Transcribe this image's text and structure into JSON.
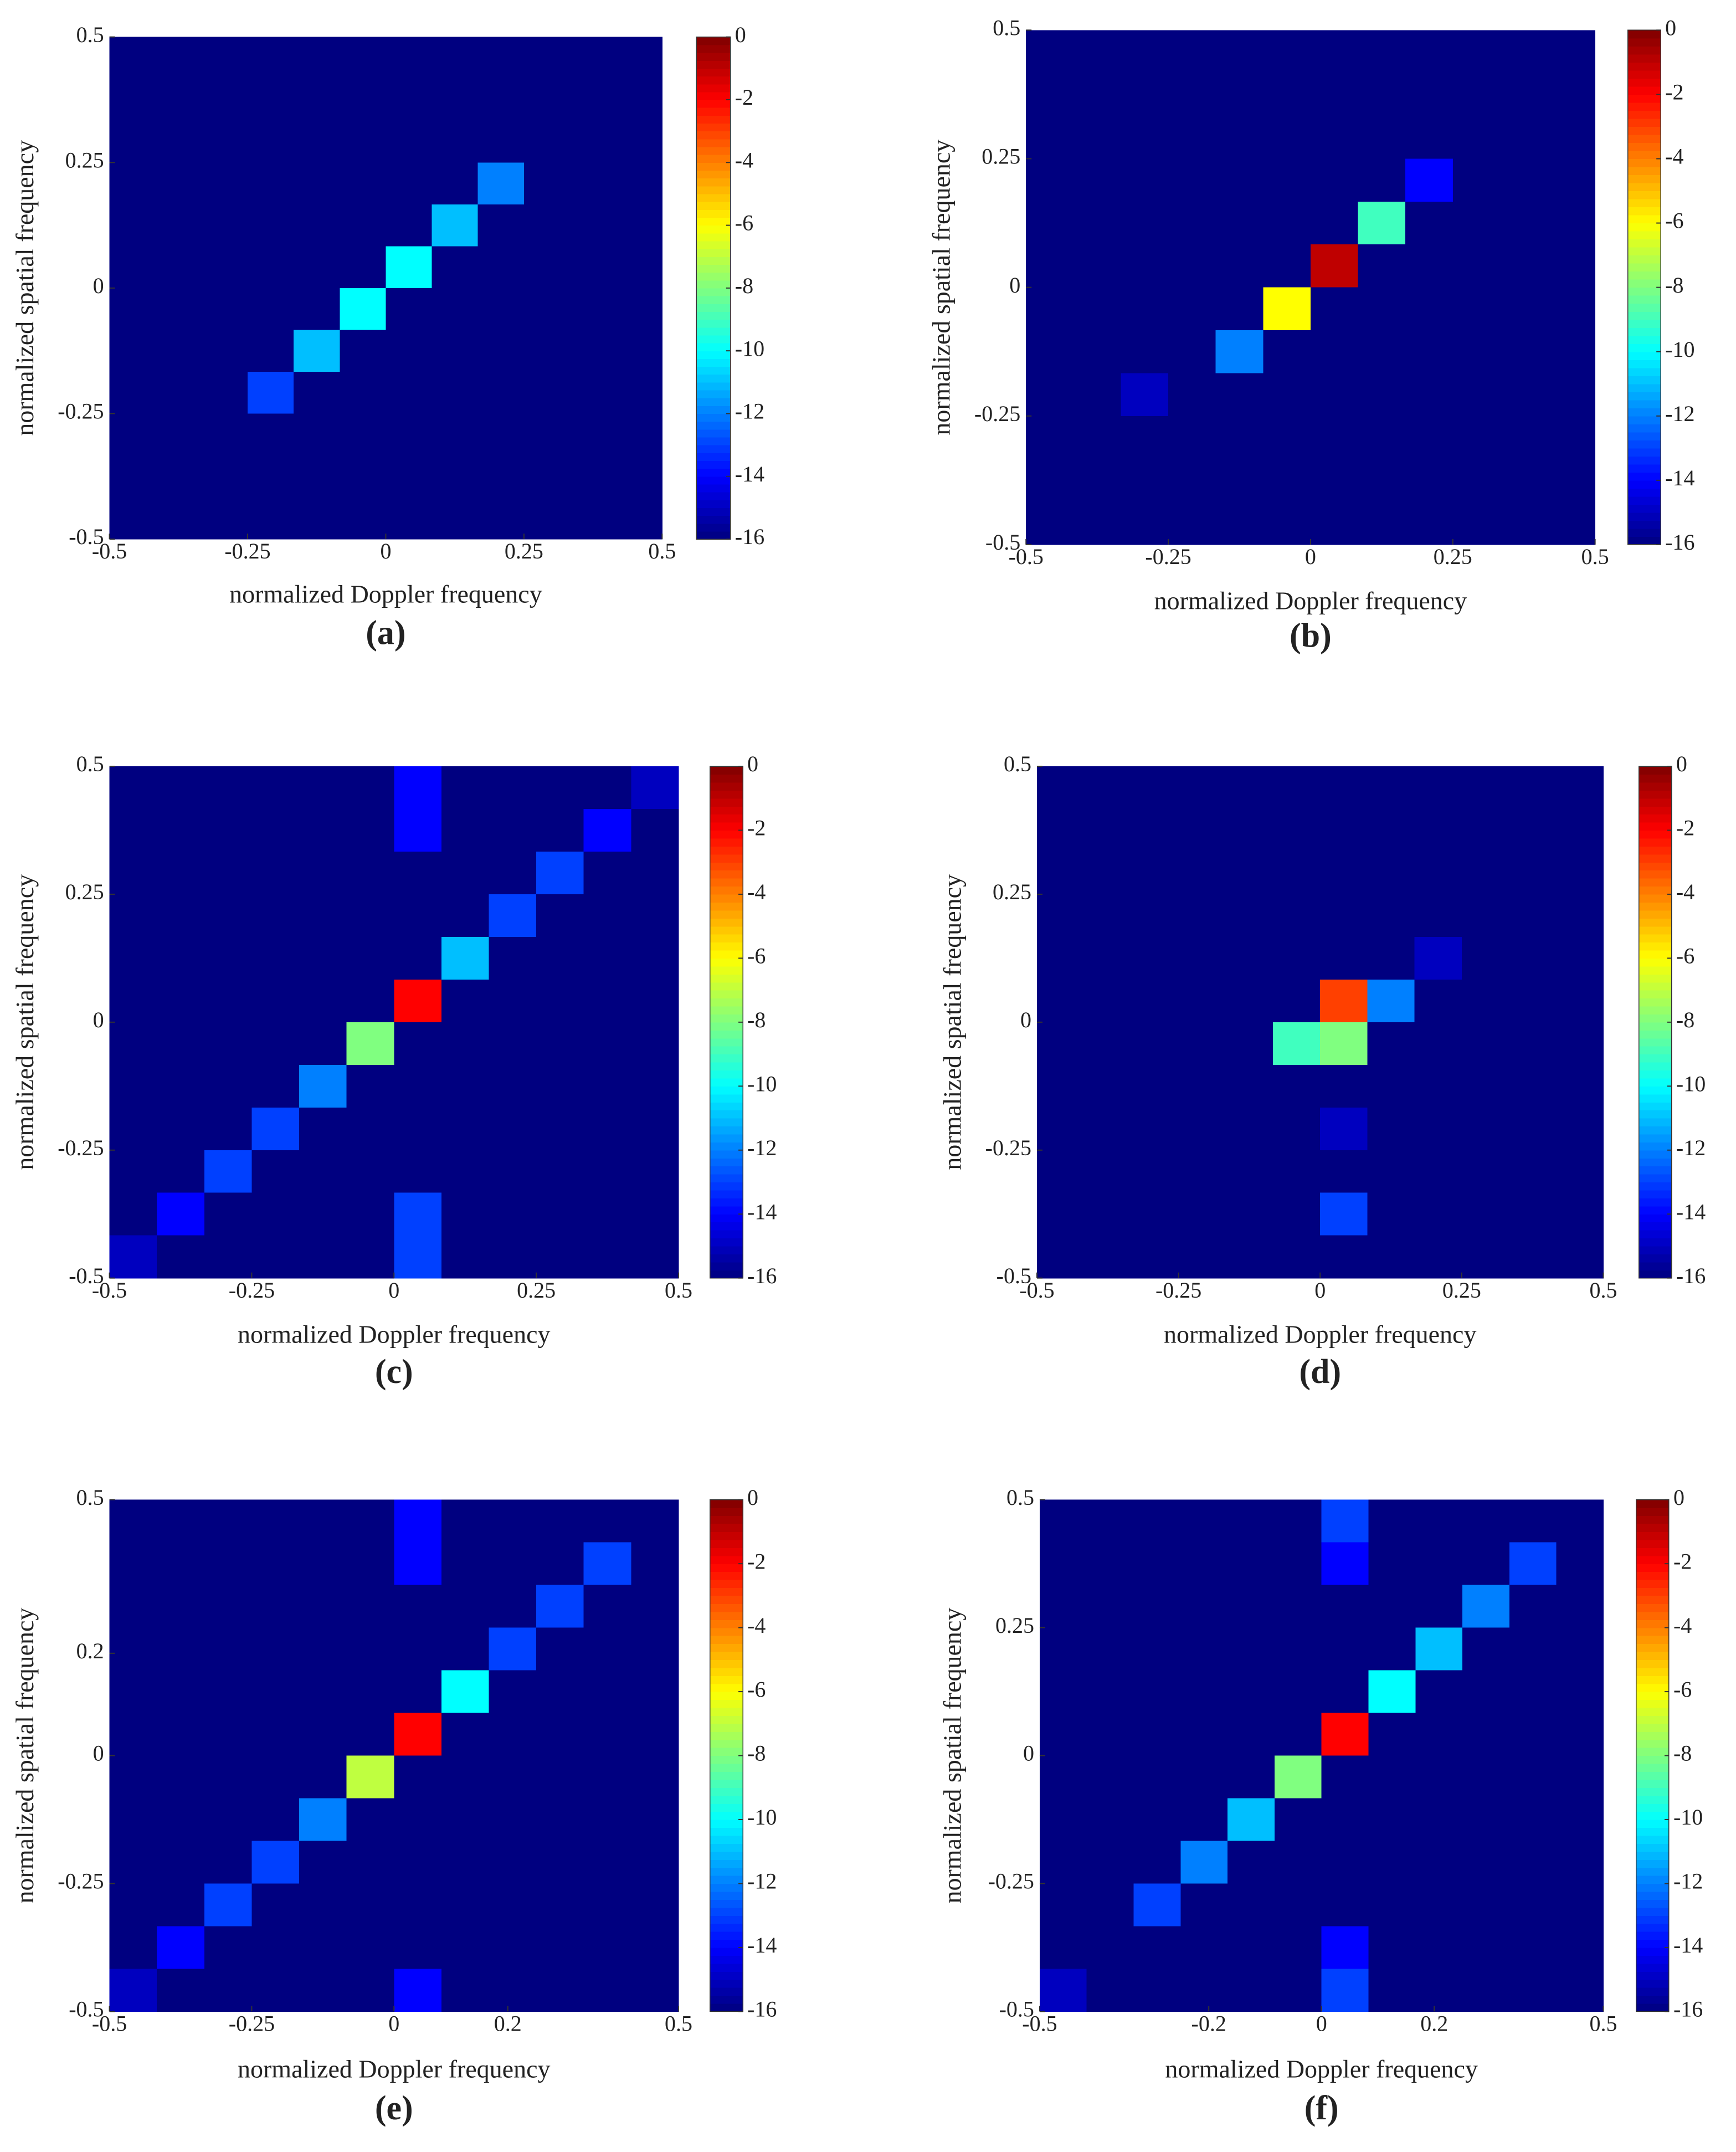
{
  "chart_data": [
    {
      "type": "heatmap",
      "label": "(a)",
      "xlabel": "normalized Doppler frequency",
      "ylabel": "normalized spatial frequency",
      "xlim": [
        -0.5,
        0.5
      ],
      "ylim": [
        -0.5,
        0.5
      ],
      "xticks": [
        -0.5,
        -0.25,
        0,
        0.25,
        0.5
      ],
      "yticks": [
        -0.5,
        -0.25,
        0,
        0.25,
        0.5
      ],
      "clim": [
        -16,
        0
      ],
      "cticks": [
        0,
        -2,
        -4,
        -6,
        -8,
        -10,
        -12,
        -14,
        -16
      ],
      "colormap": "jet",
      "z": [
        [
          -16,
          -16,
          -16,
          -16,
          -16,
          -16,
          -16,
          -16,
          -16,
          -16,
          -16,
          -16
        ],
        [
          -16,
          -16,
          -16,
          -16,
          -16,
          -16,
          -16,
          -16,
          -16,
          -16,
          -16,
          -16
        ],
        [
          -16,
          -16,
          -16,
          -16,
          -16,
          -16,
          -16,
          -16,
          -16,
          -16,
          -16,
          -16
        ],
        [
          -16,
          -16,
          -16,
          -16,
          -16,
          -16,
          -16,
          -16,
          -12,
          -16,
          -16,
          -16
        ],
        [
          -16,
          -16,
          -16,
          -16,
          -16,
          -16,
          -16,
          -11,
          -16,
          -16,
          -16,
          -16
        ],
        [
          -16,
          -16,
          -16,
          -16,
          -16,
          -16,
          -10,
          -16,
          -16,
          -16,
          -16,
          -16
        ],
        [
          -16,
          -16,
          -16,
          -16,
          -16,
          -10,
          -16,
          -16,
          -16,
          -16,
          -16,
          -16
        ],
        [
          -16,
          -16,
          -16,
          -16,
          -11,
          -16,
          -16,
          -16,
          -16,
          -16,
          -16,
          -16
        ],
        [
          -16,
          -16,
          -16,
          -13,
          -16,
          -16,
          -16,
          -16,
          -16,
          -16,
          -16,
          -16
        ],
        [
          -16,
          -16,
          -16,
          -16,
          -16,
          -16,
          -16,
          -16,
          -16,
          -16,
          -16,
          -16
        ],
        [
          -16,
          -16,
          -16,
          -16,
          -16,
          -16,
          -16,
          -16,
          -16,
          -16,
          -16,
          -16
        ],
        [
          -16,
          -16,
          -16,
          -16,
          -16,
          -16,
          -16,
          -16,
          -16,
          -16,
          -16,
          -16
        ]
      ]
    },
    {
      "type": "heatmap",
      "label": "(b)",
      "xlabel": "normalized Doppler frequency",
      "ylabel": "normalized spatial frequency",
      "xlim": [
        -0.5,
        0.5
      ],
      "ylim": [
        -0.5,
        0.5
      ],
      "xticks": [
        -0.5,
        -0.25,
        0,
        0.25,
        0.5
      ],
      "yticks": [
        -0.5,
        -0.25,
        0,
        0.25,
        0.5
      ],
      "clim": [
        -16,
        0
      ],
      "cticks": [
        0,
        -2,
        -4,
        -6,
        -8,
        -10,
        -12,
        -14,
        -16
      ],
      "colormap": "jet",
      "z": [
        [
          -16,
          -16,
          -16,
          -16,
          -16,
          -16,
          -16,
          -16,
          -16,
          -16,
          -16,
          -16
        ],
        [
          -16,
          -16,
          -16,
          -16,
          -16,
          -16,
          -16,
          -16,
          -16,
          -16,
          -16,
          -16
        ],
        [
          -16,
          -16,
          -16,
          -16,
          -16,
          -16,
          -16,
          -16,
          -16,
          -16,
          -16,
          -16
        ],
        [
          -16,
          -16,
          -16,
          -16,
          -16,
          -16,
          -16,
          -16,
          -14,
          -16,
          -16,
          -16
        ],
        [
          -16,
          -16,
          -16,
          -16,
          -16,
          -16,
          -16,
          -9,
          -16,
          -16,
          -16,
          -16
        ],
        [
          -16,
          -16,
          -16,
          -16,
          -16,
          -16,
          -1,
          -16,
          -16,
          -16,
          -16,
          -16
        ],
        [
          -16,
          -16,
          -16,
          -16,
          -16,
          -6,
          -16,
          -16,
          -16,
          -16,
          -16,
          -16
        ],
        [
          -16,
          -16,
          -16,
          -16,
          -12,
          -16,
          -16,
          -16,
          -16,
          -16,
          -16,
          -16
        ],
        [
          -16,
          -16,
          -15,
          -16,
          -16,
          -16,
          -16,
          -16,
          -16,
          -16,
          -16,
          -16
        ],
        [
          -16,
          -16,
          -16,
          -16,
          -16,
          -16,
          -16,
          -16,
          -16,
          -16,
          -16,
          -16
        ],
        [
          -16,
          -16,
          -16,
          -16,
          -16,
          -16,
          -16,
          -16,
          -16,
          -16,
          -16,
          -16
        ],
        [
          -16,
          -16,
          -16,
          -16,
          -16,
          -16,
          -16,
          -16,
          -16,
          -16,
          -16,
          -16
        ]
      ]
    },
    {
      "type": "heatmap",
      "label": "(c)",
      "xlabel": "normalized Doppler frequency",
      "ylabel": "normalized spatial frequency",
      "xlim": [
        -0.5,
        0.5
      ],
      "ylim": [
        -0.5,
        0.5
      ],
      "xticks": [
        -0.5,
        -0.25,
        0,
        0.25,
        0.5
      ],
      "yticks": [
        -0.5,
        -0.25,
        0,
        0.25,
        0.5
      ],
      "clim": [
        -16,
        0
      ],
      "cticks": [
        0,
        -2,
        -4,
        -6,
        -8,
        -10,
        -12,
        -14,
        -16
      ],
      "colormap": "jet",
      "z": [
        [
          -16,
          -16,
          -16,
          -16,
          -16,
          -16,
          -14,
          -16,
          -16,
          -16,
          -16,
          -15
        ],
        [
          -16,
          -16,
          -16,
          -16,
          -16,
          -16,
          -14,
          -16,
          -16,
          -16,
          -14,
          -16
        ],
        [
          -16,
          -16,
          -16,
          -16,
          -16,
          -16,
          -16,
          -16,
          -16,
          -13,
          -16,
          -16
        ],
        [
          -16,
          -16,
          -16,
          -16,
          -16,
          -16,
          -16,
          -16,
          -13,
          -16,
          -16,
          -16
        ],
        [
          -16,
          -16,
          -16,
          -16,
          -16,
          -16,
          -16,
          -11,
          -16,
          -16,
          -16,
          -16
        ],
        [
          -16,
          -16,
          -16,
          -16,
          -16,
          -16,
          -2,
          -16,
          -16,
          -16,
          -16,
          -16
        ],
        [
          -16,
          -16,
          -16,
          -16,
          -16,
          -8,
          -16,
          -16,
          -16,
          -16,
          -16,
          -16
        ],
        [
          -16,
          -16,
          -16,
          -16,
          -12,
          -16,
          -16,
          -16,
          -16,
          -16,
          -16,
          -16
        ],
        [
          -16,
          -16,
          -16,
          -13,
          -16,
          -16,
          -16,
          -16,
          -16,
          -16,
          -16,
          -16
        ],
        [
          -16,
          -16,
          -13,
          -16,
          -16,
          -16,
          -16,
          -16,
          -16,
          -16,
          -16,
          -16
        ],
        [
          -16,
          -14,
          -16,
          -16,
          -16,
          -16,
          -13,
          -16,
          -16,
          -16,
          -16,
          -16
        ],
        [
          -15,
          -16,
          -16,
          -16,
          -16,
          -16,
          -13,
          -16,
          -16,
          -16,
          -16,
          -16
        ]
      ]
    },
    {
      "type": "heatmap",
      "label": "(d)",
      "xlabel": "normalized Doppler frequency",
      "ylabel": "normalized spatial frequency",
      "xlim": [
        -0.5,
        0.5
      ],
      "ylim": [
        -0.5,
        0.5
      ],
      "xticks": [
        -0.5,
        -0.25,
        0,
        0.25,
        0.5
      ],
      "yticks": [
        -0.5,
        -0.25,
        0,
        0.25,
        0.5
      ],
      "clim": [
        -16,
        0
      ],
      "cticks": [
        0,
        -2,
        -4,
        -6,
        -8,
        -10,
        -12,
        -14,
        -16
      ],
      "colormap": "jet",
      "z": [
        [
          -16,
          -16,
          -16,
          -16,
          -16,
          -16,
          -16,
          -16,
          -16,
          -16,
          -16,
          -16
        ],
        [
          -16,
          -16,
          -16,
          -16,
          -16,
          -16,
          -16,
          -16,
          -16,
          -16,
          -16,
          -16
        ],
        [
          -16,
          -16,
          -16,
          -16,
          -16,
          -16,
          -16,
          -16,
          -16,
          -16,
          -16,
          -16
        ],
        [
          -16,
          -16,
          -16,
          -16,
          -16,
          -16,
          -16,
          -16,
          -16,
          -16,
          -16,
          -16
        ],
        [
          -16,
          -16,
          -16,
          -16,
          -16,
          -16,
          -16,
          -16,
          -15,
          -16,
          -16,
          -16
        ],
        [
          -16,
          -16,
          -16,
          -16,
          -16,
          -16,
          -3,
          -12,
          -16,
          -16,
          -16,
          -16
        ],
        [
          -16,
          -16,
          -16,
          -16,
          -16,
          -9,
          -8,
          -16,
          -16,
          -16,
          -16,
          -16
        ],
        [
          -16,
          -16,
          -16,
          -16,
          -16,
          -16,
          -16,
          -16,
          -16,
          -16,
          -16,
          -16
        ],
        [
          -16,
          -16,
          -16,
          -16,
          -16,
          -16,
          -15,
          -16,
          -16,
          -16,
          -16,
          -16
        ],
        [
          -16,
          -16,
          -16,
          -16,
          -16,
          -16,
          -16,
          -16,
          -16,
          -16,
          -16,
          -16
        ],
        [
          -16,
          -16,
          -16,
          -16,
          -16,
          -16,
          -13,
          -16,
          -16,
          -16,
          -16,
          -16
        ],
        [
          -16,
          -16,
          -16,
          -16,
          -16,
          -16,
          -16,
          -16,
          -16,
          -16,
          -16,
          -16
        ]
      ]
    },
    {
      "type": "heatmap",
      "label": "(e)",
      "xlabel": "normalized Doppler frequency",
      "ylabel": "normalized spatial frequency",
      "xlim": [
        -0.5,
        0.5
      ],
      "ylim": [
        -0.5,
        0.5
      ],
      "xticks": [
        -0.5,
        -0.25,
        0,
        0.2,
        0.5
      ],
      "yticks": [
        -0.5,
        -0.25,
        0,
        0.2,
        0.5
      ],
      "clim": [
        -16,
        0
      ],
      "cticks": [
        0,
        -2,
        -4,
        -6,
        -8,
        -10,
        -12,
        -14,
        -16
      ],
      "colormap": "jet",
      "z": [
        [
          -16,
          -16,
          -16,
          -16,
          -16,
          -16,
          -14,
          -16,
          -16,
          -16,
          -16,
          -16
        ],
        [
          -16,
          -16,
          -16,
          -16,
          -16,
          -16,
          -14,
          -16,
          -16,
          -16,
          -13,
          -16
        ],
        [
          -16,
          -16,
          -16,
          -16,
          -16,
          -16,
          -16,
          -16,
          -16,
          -13,
          -16,
          -16
        ],
        [
          -16,
          -16,
          -16,
          -16,
          -16,
          -16,
          -16,
          -16,
          -13,
          -16,
          -16,
          -16
        ],
        [
          -16,
          -16,
          -16,
          -16,
          -16,
          -16,
          -16,
          -10,
          -16,
          -16,
          -16,
          -16
        ],
        [
          -16,
          -16,
          -16,
          -16,
          -16,
          -16,
          -2,
          -16,
          -16,
          -16,
          -16,
          -16
        ],
        [
          -16,
          -16,
          -16,
          -16,
          -16,
          -7,
          -16,
          -16,
          -16,
          -16,
          -16,
          -16
        ],
        [
          -16,
          -16,
          -16,
          -16,
          -12,
          -16,
          -16,
          -16,
          -16,
          -16,
          -16,
          -16
        ],
        [
          -16,
          -16,
          -16,
          -13,
          -16,
          -16,
          -16,
          -16,
          -16,
          -16,
          -16,
          -16
        ],
        [
          -16,
          -16,
          -13,
          -16,
          -16,
          -16,
          -16,
          -16,
          -16,
          -16,
          -16,
          -16
        ],
        [
          -16,
          -14,
          -16,
          -16,
          -16,
          -16,
          -16,
          -16,
          -16,
          -16,
          -16,
          -16
        ],
        [
          -15,
          -16,
          -16,
          -16,
          -16,
          -16,
          -14,
          -16,
          -16,
          -16,
          -16,
          -16
        ]
      ]
    },
    {
      "type": "heatmap",
      "label": "(f)",
      "xlabel": "normalized Doppler frequency",
      "ylabel": "normalized spatial frequency",
      "xlim": [
        -0.5,
        0.5
      ],
      "ylim": [
        -0.5,
        0.5
      ],
      "xticks": [
        -0.5,
        -0.2,
        0,
        0.2,
        0.5
      ],
      "yticks": [
        -0.5,
        -0.25,
        0,
        0.25,
        0.5
      ],
      "clim": [
        -16,
        0
      ],
      "cticks": [
        0,
        -2,
        -4,
        -6,
        -8,
        -10,
        -12,
        -14,
        -16
      ],
      "colormap": "jet",
      "z": [
        [
          -16,
          -16,
          -16,
          -16,
          -16,
          -16,
          -13,
          -16,
          -16,
          -16,
          -16,
          -16
        ],
        [
          -16,
          -16,
          -16,
          -16,
          -16,
          -16,
          -14,
          -16,
          -16,
          -16,
          -13,
          -16
        ],
        [
          -16,
          -16,
          -16,
          -16,
          -16,
          -16,
          -16,
          -16,
          -16,
          -12,
          -16,
          -16
        ],
        [
          -16,
          -16,
          -16,
          -16,
          -16,
          -16,
          -16,
          -16,
          -11,
          -16,
          -16,
          -16
        ],
        [
          -16,
          -16,
          -16,
          -16,
          -16,
          -16,
          -16,
          -10,
          -16,
          -16,
          -16,
          -16
        ],
        [
          -16,
          -16,
          -16,
          -16,
          -16,
          -16,
          -2,
          -16,
          -16,
          -16,
          -16,
          -16
        ],
        [
          -16,
          -16,
          -16,
          -16,
          -16,
          -8,
          -16,
          -16,
          -16,
          -16,
          -16,
          -16
        ],
        [
          -16,
          -16,
          -16,
          -16,
          -11,
          -16,
          -16,
          -16,
          -16,
          -16,
          -16,
          -16
        ],
        [
          -16,
          -16,
          -16,
          -12,
          -16,
          -16,
          -16,
          -16,
          -16,
          -16,
          -16,
          -16
        ],
        [
          -16,
          -16,
          -13,
          -16,
          -16,
          -16,
          -16,
          -16,
          -16,
          -16,
          -16,
          -16
        ],
        [
          -16,
          -16,
          -16,
          -16,
          -16,
          -16,
          -14,
          -16,
          -16,
          -16,
          -16,
          -16
        ],
        [
          -15,
          -16,
          -16,
          -16,
          -16,
          -16,
          -13,
          -16,
          -16,
          -16,
          -16,
          -16
        ]
      ]
    }
  ]
}
